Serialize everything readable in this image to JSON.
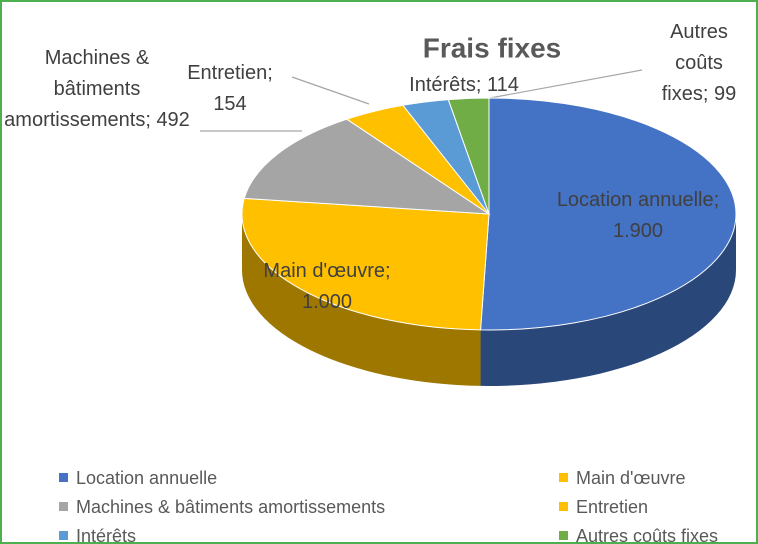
{
  "chart_data": {
    "type": "pie3d",
    "title": "Frais fixes",
    "categories": [
      "Location annuelle",
      "Main d'œuvre",
      "Machines & bâtiments amortissements",
      "Entretien",
      "Intérêts",
      "Autres coûts fixes"
    ],
    "values": [
      1900,
      1000,
      492,
      154,
      114,
      99
    ],
    "value_labels": [
      "Location annuelle; 1.900",
      "Main d'œuvre; 1.000",
      "Machines & bâtiments amortissements; 492",
      "Entretien; 154",
      "Intérêts; 114",
      "Autres coûts fixes; 99"
    ],
    "colors": [
      "#4472c4",
      "#ffc000",
      "#a5a5a5",
      "#ffc000",
      "#5b9bd5",
      "#70ad47"
    ],
    "legend": "bottom"
  }
}
